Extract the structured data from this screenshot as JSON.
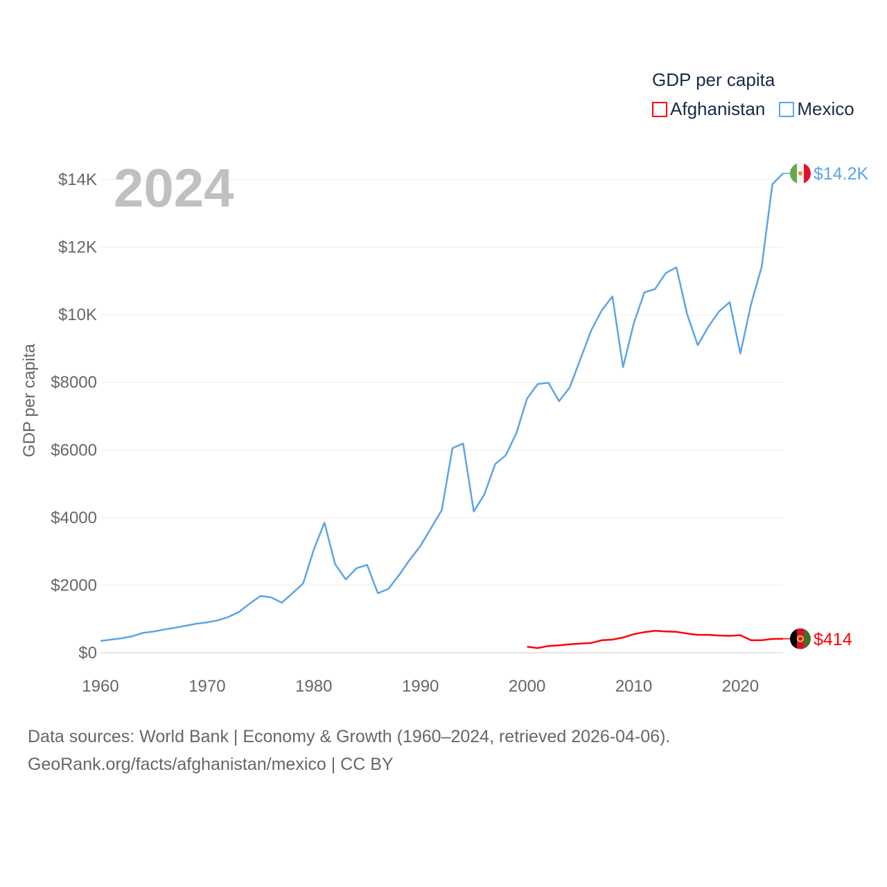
{
  "legend": {
    "title": "GDP per capita",
    "items": [
      {
        "label": "Afghanistan",
        "color": "#ff0000"
      },
      {
        "label": "Mexico",
        "color": "#5ba4e6"
      }
    ]
  },
  "year_watermark": "2024",
  "footer": {
    "line1": "Data sources: World Bank | Economy & Growth (1960–2024, retrieved 2026-04-06).",
    "line2": "GeoRank.org/facts/afghanistan/mexico | CC BY"
  },
  "chart_data": {
    "type": "line",
    "title": "GDP per capita",
    "xlabel": "",
    "ylabel": "GDP per capita",
    "xlim": [
      1960,
      2024
    ],
    "ylim": [
      0,
      14000
    ],
    "x_ticks": [
      1960,
      1970,
      1980,
      1990,
      2000,
      2010,
      2020
    ],
    "x_tick_labels": [
      "1960",
      "1970",
      "1980",
      "1990",
      "2000",
      "2010",
      "2020"
    ],
    "y_ticks": [
      0,
      2000,
      4000,
      6000,
      8000,
      10000,
      12000,
      14000
    ],
    "y_tick_labels": [
      "$0",
      "$2000",
      "$4000",
      "$6000",
      "$8000",
      "$10K",
      "$12K",
      "$14K"
    ],
    "grid": true,
    "legend_position": "top-right",
    "series": [
      {
        "name": "Mexico",
        "color": "#5ba4e6",
        "end_label": "$14.2K",
        "start_year": 1960,
        "values": [
          350,
          390,
          430,
          490,
          590,
          630,
          690,
          740,
          800,
          860,
          900,
          960,
          1060,
          1210,
          1460,
          1680,
          1640,
          1480,
          1760,
          2050,
          3050,
          3850,
          2620,
          2170,
          2500,
          2600,
          1760,
          1890,
          2300,
          2750,
          3160,
          3690,
          4220,
          6050,
          6190,
          4180,
          4690,
          5580,
          5840,
          6500,
          7520,
          7950,
          7990,
          7440,
          7850,
          8690,
          9530,
          10130,
          10540,
          8450,
          9740,
          10660,
          10760,
          11230,
          11400,
          10020,
          9100,
          9650,
          10100,
          10370,
          8850,
          10310,
          11420,
          13860,
          14180
        ]
      },
      {
        "name": "Afghanistan",
        "color": "#ff0000",
        "end_label": "$414",
        "start_year": 2000,
        "values": [
          180,
          140,
          200,
          220,
          250,
          270,
          290,
          370,
          390,
          450,
          550,
          610,
          650,
          630,
          620,
          570,
          530,
          530,
          510,
          500,
          520,
          370,
          370,
          410,
          414
        ]
      }
    ]
  }
}
